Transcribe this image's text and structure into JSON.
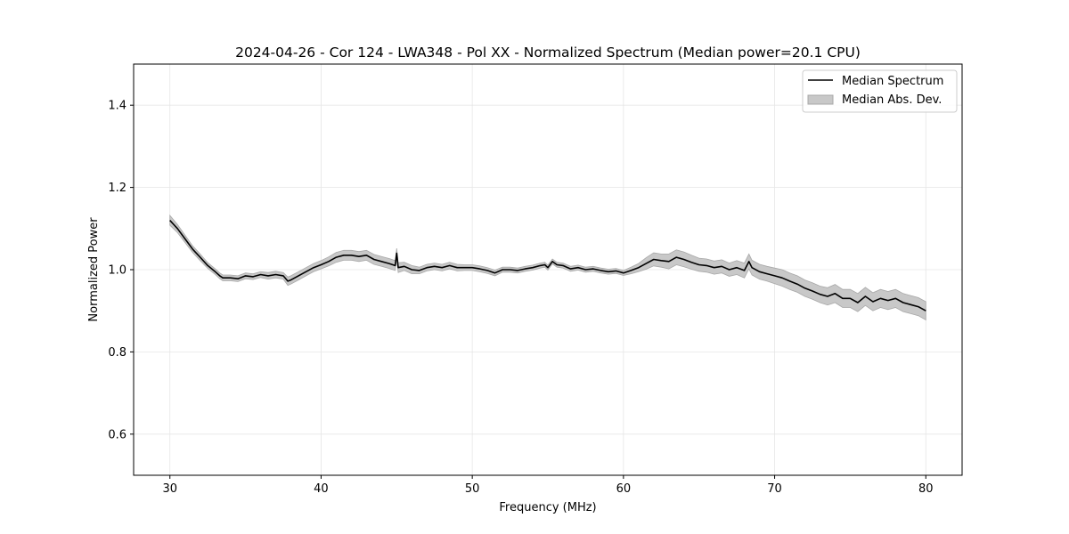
{
  "chart_data": {
    "type": "line",
    "title": "2024-04-26 - Cor 124 - LWA348 - Pol XX - Normalized Spectrum (Median power=20.1 CPU)",
    "xlabel": "Frequency (MHz)",
    "ylabel": "Normalized Power",
    "xlim": [
      27.6,
      82.4
    ],
    "ylim": [
      0.5,
      1.5
    ],
    "xticks": [
      30,
      40,
      50,
      60,
      70,
      80
    ],
    "yticks": [
      0.6,
      0.8,
      1.0,
      1.2,
      1.4
    ],
    "xtick_labels": [
      "30",
      "40",
      "50",
      "60",
      "70",
      "80"
    ],
    "ytick_labels": [
      "0.6",
      "0.8",
      "1.0",
      "1.2",
      "1.4"
    ],
    "grid": true,
    "legend": {
      "placement": "top-right",
      "entries": [
        "Median Spectrum",
        "Median Abs. Dev."
      ]
    },
    "colors": {
      "line": "#000000",
      "band": "#c8c8c8",
      "band_edge": "#a8a8a8",
      "grid": "#e6e6e6"
    },
    "series": [
      {
        "name": "Median Spectrum",
        "x": [
          30.0,
          30.5,
          31.0,
          31.5,
          32.0,
          32.5,
          33.0,
          33.3,
          33.5,
          34.0,
          34.5,
          35.0,
          35.5,
          36.0,
          36.5,
          37.0,
          37.5,
          37.8,
          38.0,
          38.5,
          39.0,
          39.5,
          40.0,
          40.5,
          41.0,
          41.5,
          42.0,
          42.5,
          43.0,
          43.5,
          44.0,
          44.5,
          44.9,
          45.0,
          45.1,
          45.5,
          46.0,
          46.5,
          47.0,
          47.5,
          48.0,
          48.5,
          49.0,
          49.5,
          50.0,
          50.5,
          51.0,
          51.5,
          52.0,
          52.5,
          53.0,
          53.5,
          54.0,
          54.5,
          54.8,
          55.0,
          55.3,
          55.6,
          56.0,
          56.5,
          57.0,
          57.5,
          58.0,
          58.5,
          59.0,
          59.5,
          60.0,
          60.5,
          61.0,
          61.5,
          62.0,
          62.5,
          63.0,
          63.5,
          64.0,
          64.5,
          65.0,
          65.5,
          66.0,
          66.5,
          67.0,
          67.5,
          68.0,
          68.3,
          68.5,
          69.0,
          69.5,
          70.0,
          70.5,
          71.0,
          71.5,
          72.0,
          72.5,
          73.0,
          73.5,
          74.0,
          74.5,
          75.0,
          75.5,
          76.0,
          76.5,
          77.0,
          77.5,
          78.0,
          78.5,
          79.0,
          79.5,
          80.0
        ],
        "values": [
          1.12,
          1.1,
          1.075,
          1.05,
          1.03,
          1.01,
          0.995,
          0.985,
          0.98,
          0.98,
          0.978,
          0.985,
          0.983,
          0.988,
          0.985,
          0.988,
          0.985,
          0.972,
          0.975,
          0.985,
          0.995,
          1.005,
          1.012,
          1.02,
          1.03,
          1.035,
          1.035,
          1.032,
          1.035,
          1.025,
          1.02,
          1.015,
          1.01,
          1.04,
          1.005,
          1.008,
          1.0,
          0.998,
          1.005,
          1.008,
          1.005,
          1.01,
          1.005,
          1.005,
          1.005,
          1.002,
          0.998,
          0.992,
          1.0,
          1.0,
          0.998,
          1.002,
          1.005,
          1.01,
          1.012,
          1.005,
          1.02,
          1.012,
          1.01,
          1.002,
          1.005,
          1.0,
          1.002,
          0.998,
          0.995,
          0.997,
          0.992,
          0.998,
          1.005,
          1.015,
          1.025,
          1.022,
          1.02,
          1.03,
          1.025,
          1.018,
          1.012,
          1.01,
          1.005,
          1.008,
          1.0,
          1.005,
          0.998,
          1.02,
          1.005,
          0.995,
          0.99,
          0.985,
          0.98,
          0.972,
          0.965,
          0.955,
          0.948,
          0.94,
          0.935,
          0.942,
          0.93,
          0.93,
          0.92,
          0.935,
          0.922,
          0.93,
          0.925,
          0.93,
          0.92,
          0.915,
          0.91,
          0.9
        ],
        "mad": [
          0.012,
          0.01,
          0.009,
          0.008,
          0.008,
          0.007,
          0.007,
          0.007,
          0.007,
          0.007,
          0.007,
          0.007,
          0.007,
          0.007,
          0.008,
          0.008,
          0.008,
          0.01,
          0.01,
          0.01,
          0.01,
          0.01,
          0.01,
          0.011,
          0.012,
          0.012,
          0.012,
          0.012,
          0.012,
          0.012,
          0.012,
          0.012,
          0.012,
          0.012,
          0.012,
          0.01,
          0.01,
          0.008,
          0.008,
          0.008,
          0.008,
          0.008,
          0.008,
          0.007,
          0.007,
          0.007,
          0.007,
          0.007,
          0.006,
          0.006,
          0.006,
          0.006,
          0.006,
          0.006,
          0.006,
          0.006,
          0.006,
          0.006,
          0.006,
          0.006,
          0.006,
          0.006,
          0.006,
          0.006,
          0.006,
          0.006,
          0.006,
          0.008,
          0.01,
          0.014,
          0.016,
          0.016,
          0.018,
          0.018,
          0.018,
          0.017,
          0.016,
          0.016,
          0.016,
          0.016,
          0.016,
          0.017,
          0.018,
          0.018,
          0.018,
          0.018,
          0.018,
          0.019,
          0.02,
          0.02,
          0.02,
          0.02,
          0.02,
          0.02,
          0.021,
          0.022,
          0.022,
          0.022,
          0.022,
          0.022,
          0.022,
          0.022,
          0.022,
          0.022,
          0.022,
          0.022,
          0.022,
          0.022
        ]
      }
    ]
  }
}
